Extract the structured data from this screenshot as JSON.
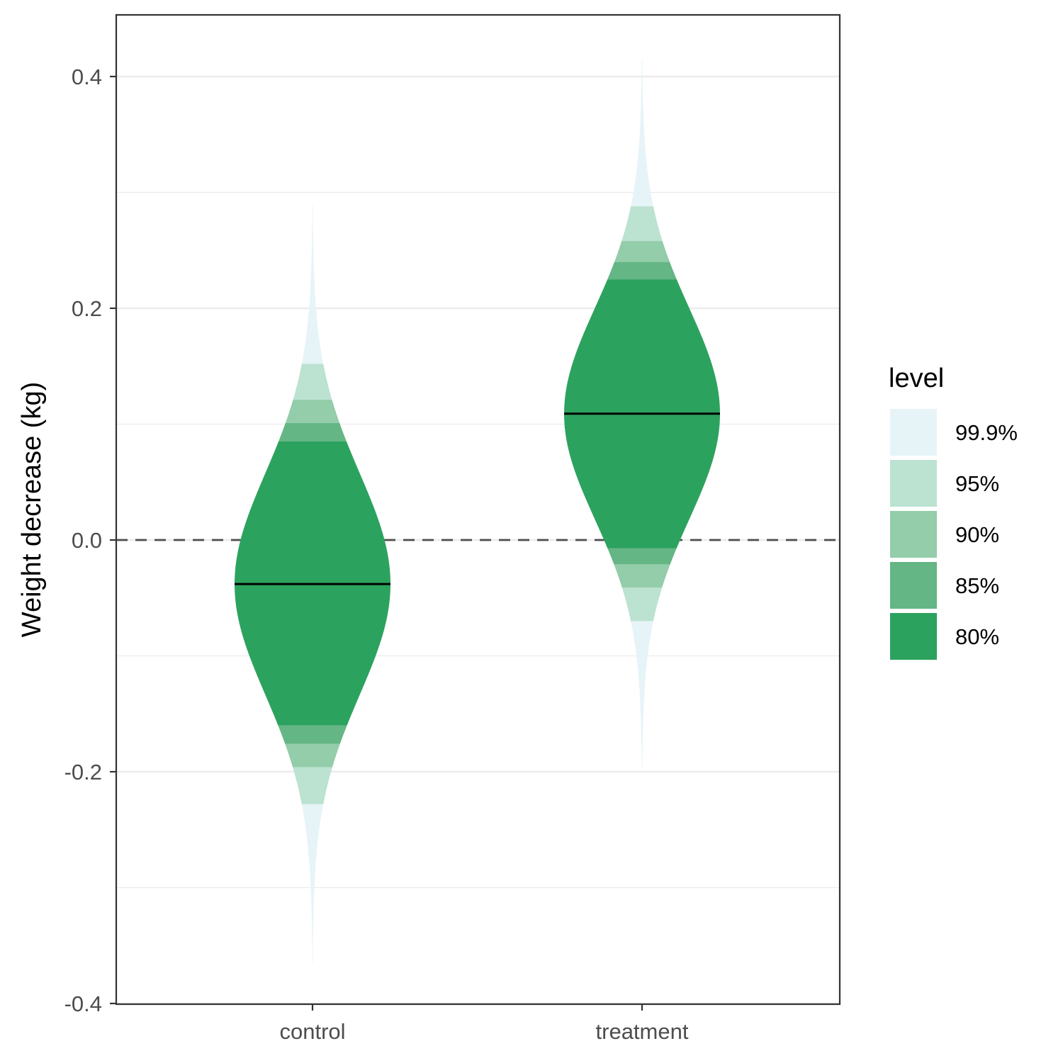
{
  "chart_data": {
    "type": "violin",
    "title": "",
    "xlabel": "",
    "ylabel": "Weight decrease (kg)",
    "ylim": [
      -0.4,
      0.45
    ],
    "y_ticks": [
      -0.4,
      -0.2,
      0.0,
      0.2,
      0.4
    ],
    "y_tick_labels": [
      "-0.4",
      "-0.2",
      "0.0",
      "0.2",
      "0.4"
    ],
    "reference_line": {
      "y": 0.0,
      "style": "dashed",
      "color": "#4d4d4d"
    },
    "grid": true,
    "legend": {
      "title": "level",
      "placement": "right",
      "items": [
        {
          "label": "99.9%",
          "color": "#e6f4f8"
        },
        {
          "label": "95%",
          "color": "#bce2d1"
        },
        {
          "label": "90%",
          "color": "#93cda9"
        },
        {
          "label": "85%",
          "color": "#64b685"
        },
        {
          "label": "80%",
          "color": "#2ca25f"
        }
      ]
    },
    "categories": [
      "control",
      "treatment"
    ],
    "groups": [
      {
        "name": "control",
        "median": -0.038,
        "sd": 0.0955,
        "range": [
          -0.365,
          0.29
        ],
        "intervals": [
          {
            "level": "99.9%",
            "lo": -0.365,
            "hi": 0.29
          },
          {
            "level": "95%",
            "lo": -0.228,
            "hi": 0.152
          },
          {
            "level": "90%",
            "lo": -0.196,
            "hi": 0.121
          },
          {
            "level": "85%",
            "lo": -0.176,
            "hi": 0.101
          },
          {
            "level": "80%",
            "lo": -0.16,
            "hi": 0.085
          }
        ]
      },
      {
        "name": "treatment",
        "median": 0.109,
        "sd": 0.091,
        "range": [
          -0.196,
          0.415
        ],
        "intervals": [
          {
            "level": "99.9%",
            "lo": -0.196,
            "hi": 0.415
          },
          {
            "level": "95%",
            "lo": -0.07,
            "hi": 0.288
          },
          {
            "level": "90%",
            "lo": -0.041,
            "hi": 0.258
          },
          {
            "level": "85%",
            "lo": -0.021,
            "hi": 0.24
          },
          {
            "level": "80%",
            "lo": -0.007,
            "hi": 0.225
          }
        ]
      }
    ]
  }
}
